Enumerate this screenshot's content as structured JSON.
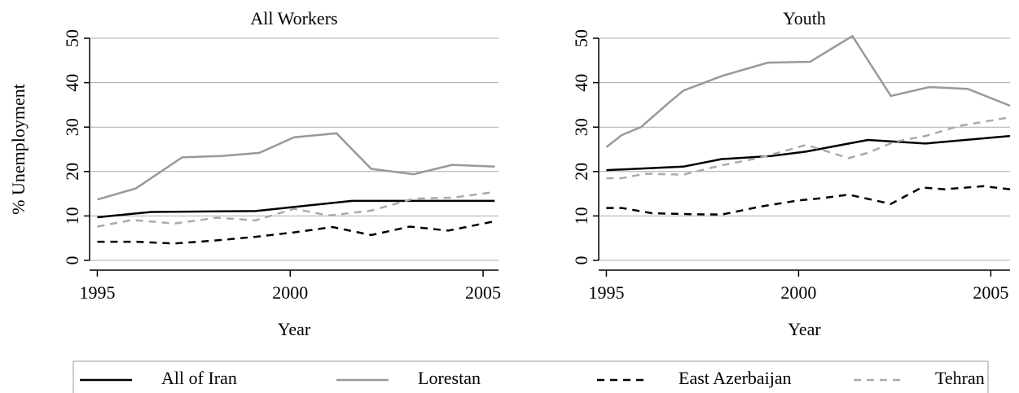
{
  "chart_data": [
    {
      "type": "line",
      "title": "All Workers",
      "x_label": "Year",
      "y_label": "% Unemployment",
      "xlim": [
        1994.8,
        2005.4
      ],
      "xticks": [
        1995,
        2000,
        2005
      ],
      "ylim": [
        0,
        50
      ],
      "yticks": [
        0,
        10,
        20,
        30,
        40,
        50
      ],
      "grid": true,
      "series": [
        {
          "name": "All of Iran",
          "color": "#000000",
          "dash": "solid",
          "x": [
            1995,
            1996.4,
            1999.1,
            2001.6,
            2005.3
          ],
          "values": [
            9.7,
            10.9,
            11.1,
            13.4,
            13.4
          ]
        },
        {
          "name": "Lorestan",
          "color": "#999999",
          "dash": "solid",
          "x": [
            1995,
            1996,
            1997.2,
            1998.2,
            1999.2,
            2000.1,
            2001.2,
            2002.1,
            2003.2,
            2004.2,
            2005.3
          ],
          "values": [
            13.7,
            16.2,
            23.2,
            23.5,
            24.2,
            27.7,
            28.6,
            20.6,
            19.4,
            21.5,
            21.1
          ]
        },
        {
          "name": "East Azerbaijan",
          "color": "#000000",
          "dash": "dashed",
          "x": [
            1995,
            1996,
            1997,
            1998.1,
            1999.1,
            2000.1,
            2001.1,
            2002.1,
            2003.1,
            2004.1,
            2005.3
          ],
          "values": [
            4.2,
            4.2,
            3.8,
            4.5,
            5.3,
            6.3,
            7.5,
            5.7,
            7.6,
            6.7,
            8.8
          ]
        },
        {
          "name": "Tehran",
          "color": "#aaaaaa",
          "dash": "dashed",
          "x": [
            1995,
            1995.9,
            1997,
            1998.1,
            1999.1,
            2000.1,
            2001,
            2002.1,
            2003.2,
            2004.2,
            2005.3
          ],
          "values": [
            7.6,
            9.1,
            8.3,
            9.6,
            9.0,
            11.6,
            10.1,
            11.2,
            13.9,
            14.1,
            15.4
          ]
        }
      ]
    },
    {
      "type": "line",
      "title": "Youth",
      "x_label": "Year",
      "xlim": [
        1994.8,
        2005.5
      ],
      "xticks": [
        1995,
        2000,
        2005
      ],
      "ylim": [
        0,
        50
      ],
      "yticks": [
        0,
        10,
        20,
        30,
        40,
        50
      ],
      "grid": true,
      "series": [
        {
          "color": "#000000",
          "dash": "solid",
          "x": [
            1995,
            1997,
            1998,
            1999.3,
            2000.2,
            2001.8,
            2003.3,
            2005.5
          ],
          "values": [
            20.3,
            21.1,
            22.8,
            23.5,
            24.5,
            27.1,
            26.3,
            28
          ]
        },
        {
          "color": "#999999",
          "dash": "solid",
          "x": [
            1995,
            1995.4,
            1995.9,
            1996.6,
            1997,
            1998,
            1999.2,
            2000.3,
            2001.4,
            2002.4,
            2003.4,
            2004.4,
            2005.5
          ],
          "values": [
            25.5,
            28.2,
            30,
            35.3,
            38.2,
            41.5,
            44.5,
            44.7,
            50.5,
            37,
            39,
            38.6,
            34.8
          ]
        },
        {
          "color": "#000000",
          "dash": "dashed",
          "x": [
            1995,
            1995.4,
            1996.2,
            1997.2,
            1998,
            1999,
            2000,
            2000.6,
            2001.3,
            2002.4,
            2003.2,
            2003.8,
            2004.8,
            2005.5
          ],
          "values": [
            11.8,
            11.8,
            10.6,
            10.4,
            10.3,
            12.1,
            13.5,
            14,
            14.8,
            12.7,
            16.4,
            16,
            16.7,
            16
          ]
        },
        {
          "color": "#aaaaaa",
          "dash": "dashed",
          "x": [
            1995,
            1995.4,
            1996,
            1997,
            1998,
            1999,
            2000.2,
            2001.3,
            2001.8,
            2002.5,
            2003.3,
            2004.2,
            2005.5
          ],
          "values": [
            18.5,
            18.5,
            19.5,
            19.3,
            21.4,
            23.1,
            26,
            23,
            24.2,
            26.7,
            28,
            30.3,
            32.2
          ]
        }
      ]
    }
  ]
}
